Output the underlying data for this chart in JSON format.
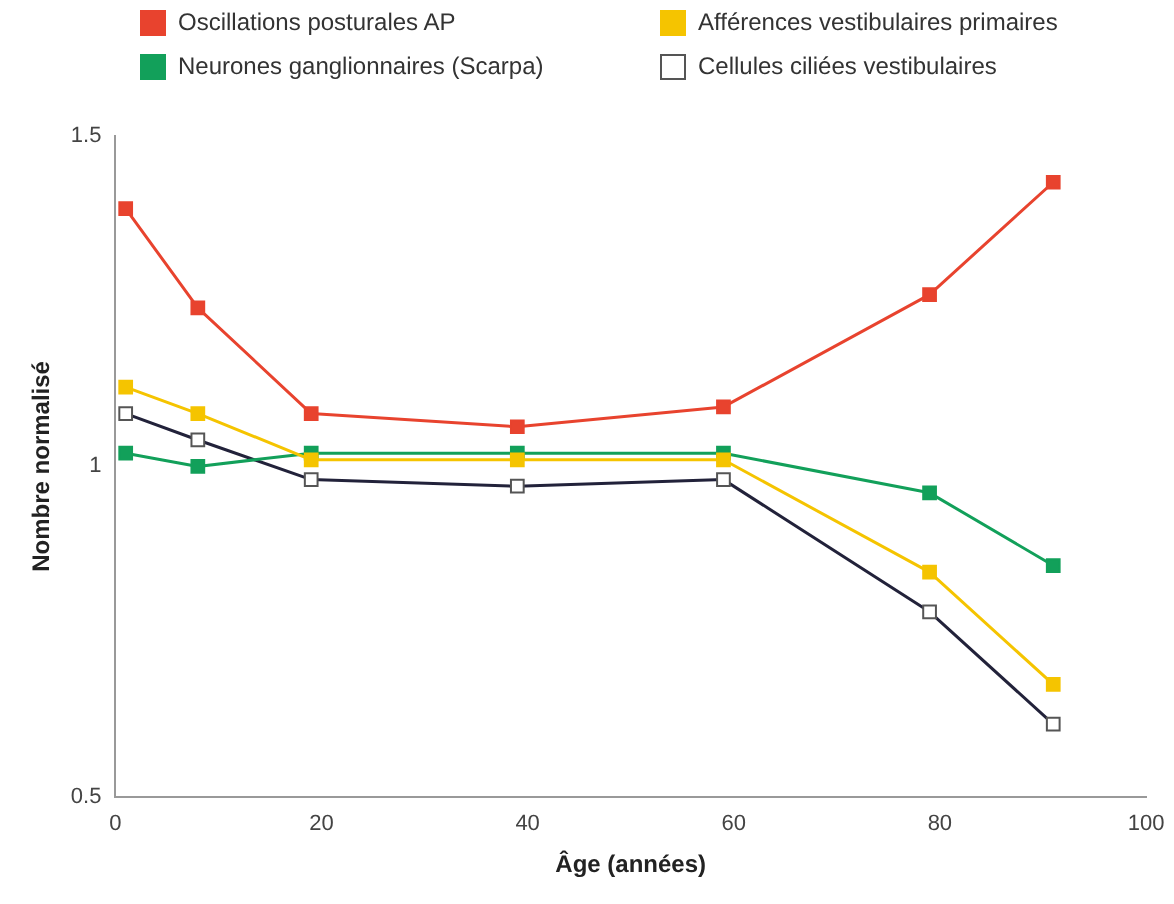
{
  "chart_data": {
    "type": "line",
    "xlabel": "Âge (années)",
    "ylabel": "Nombre normalisé",
    "x": [
      1,
      8,
      19,
      39,
      59,
      79,
      91
    ],
    "series": [
      {
        "name": "Oscillations posturales AP",
        "color": "#e8432e",
        "values": [
          1.39,
          1.24,
          1.08,
          1.06,
          1.09,
          1.26,
          1.43
        ]
      },
      {
        "name": "Afférences vestibulaires primaires",
        "color": "#f5c400",
        "values": [
          1.12,
          1.08,
          1.01,
          1.01,
          1.01,
          0.84,
          0.67
        ]
      },
      {
        "name": "Neurones ganglionnaires (Scarpa)",
        "color": "#12a05a",
        "values": [
          1.02,
          1.0,
          1.02,
          1.02,
          1.02,
          0.96,
          0.85
        ]
      },
      {
        "name": "Cellules ciliées vestibulaires",
        "color": "#ffffff",
        "values": [
          1.08,
          1.04,
          0.98,
          0.97,
          0.98,
          0.78,
          0.61
        ]
      }
    ],
    "xlim": [
      0,
      100
    ],
    "xticks": [
      0,
      20,
      40,
      60,
      80,
      100
    ],
    "ylim": [
      0.5,
      1.5
    ],
    "yticks": [
      0.5,
      1,
      1.5
    ],
    "grid": false,
    "legend": "top",
    "marker": "square",
    "line_style": "solid"
  }
}
